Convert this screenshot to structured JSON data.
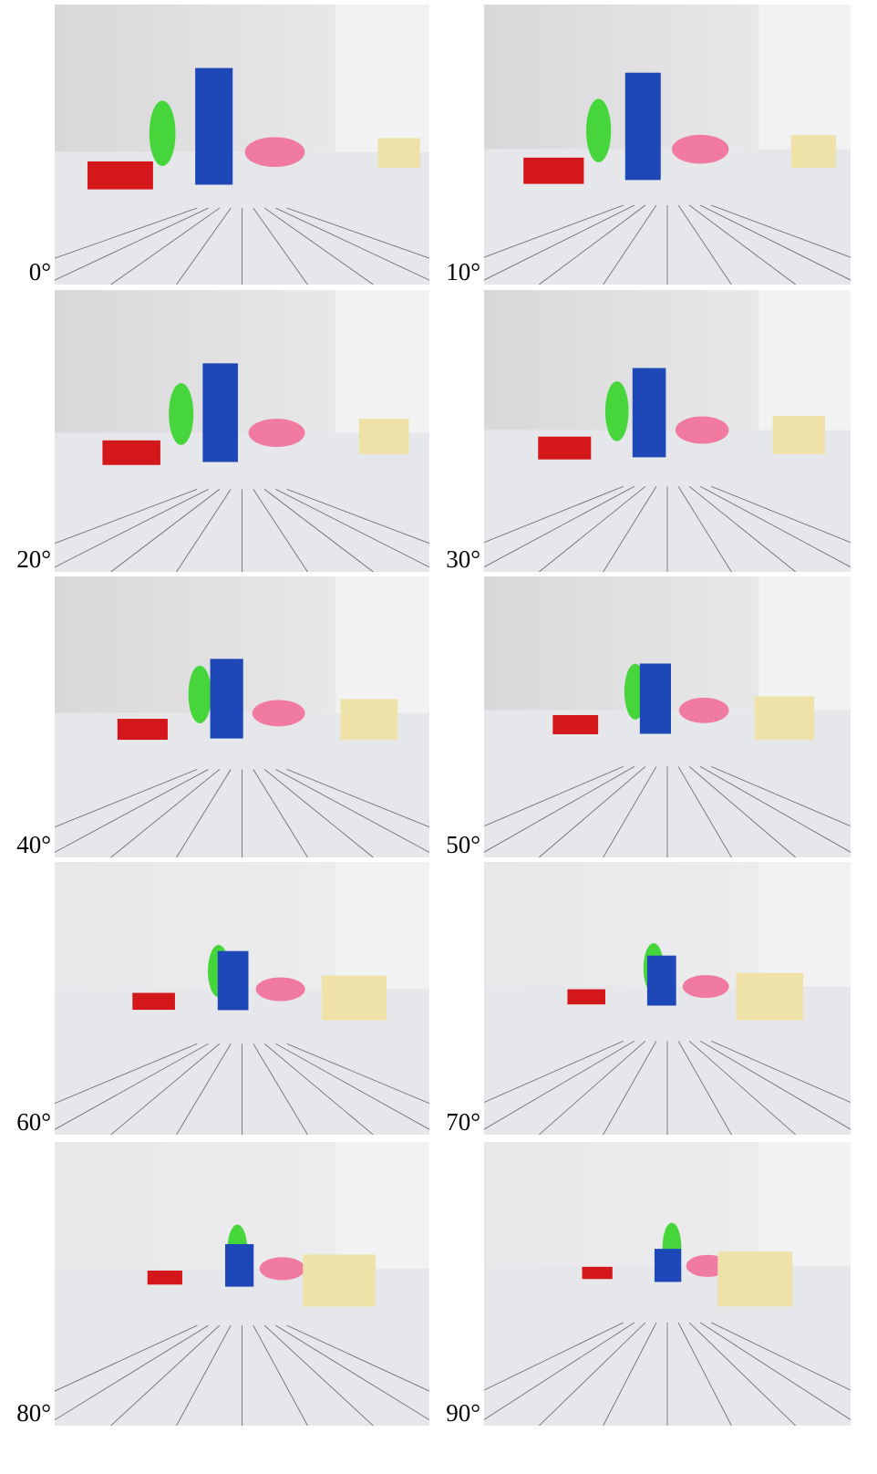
{
  "panels": [
    {
      "label": "0°"
    },
    {
      "label": "10°"
    },
    {
      "label": "20°"
    },
    {
      "label": "30°"
    },
    {
      "label": "40°"
    },
    {
      "label": "50°"
    },
    {
      "label": "60°"
    },
    {
      "label": "70°"
    },
    {
      "label": "80°"
    },
    {
      "label": "90°"
    }
  ]
}
